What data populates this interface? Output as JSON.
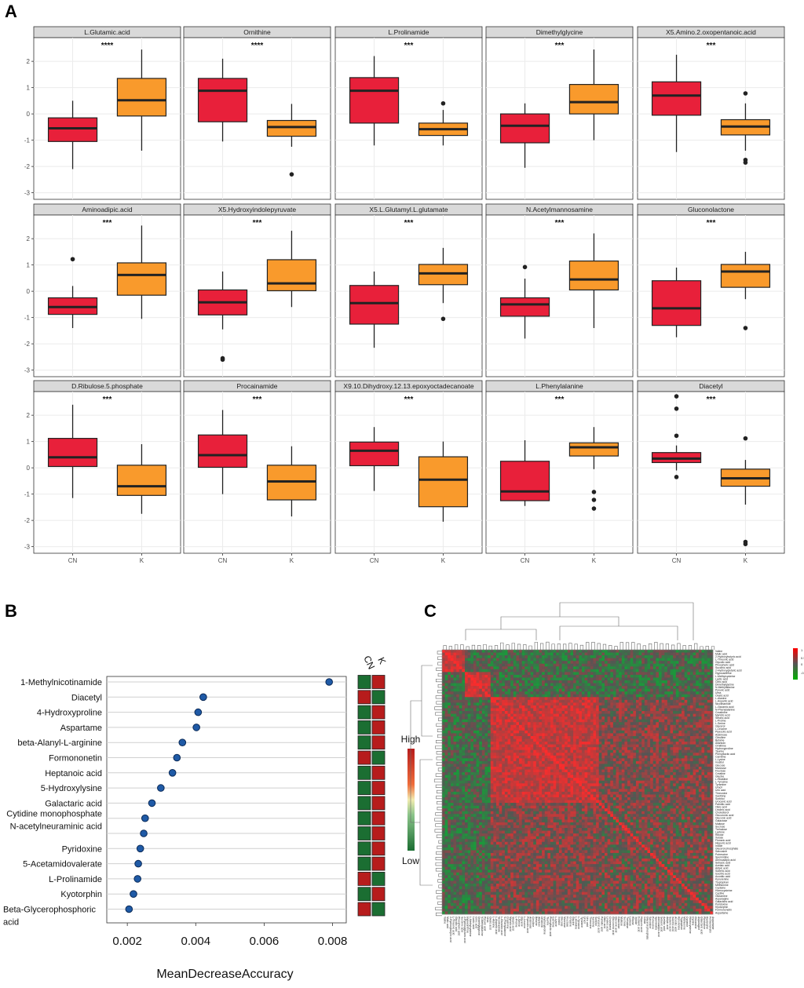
{
  "panels": {
    "a": "A",
    "b": "B",
    "c": "C"
  },
  "colors": {
    "cn_fill": "#e8203a",
    "k_fill": "#f99a2c",
    "strip_bg": "#d9d9d9",
    "grid": "#ebebeb",
    "dot": "#1f5aa6",
    "heat_high": "#ff2b2b",
    "heat_mid": "#555555",
    "heat_low": "#1a9a3a",
    "bar_high": "#b71c1c",
    "bar_low": "#1b6e32"
  },
  "chart_data": [
    {
      "type": "box",
      "panel": "A",
      "categories": [
        "CN",
        "K"
      ],
      "y_ticks": [
        2,
        1,
        0,
        -1,
        -2,
        -3
      ],
      "ylim": [
        -3.25,
        2.9
      ],
      "facets": [
        {
          "name": "L.Glutamic.acid",
          "sig": "****",
          "CN": {
            "q1": -1.05,
            "median": -0.55,
            "q3": -0.15,
            "lower": -2.1,
            "upper": 0.5,
            "outliers": []
          },
          "K": {
            "q1": -0.08,
            "median": 0.52,
            "q3": 1.35,
            "lower": -1.4,
            "upper": 2.45,
            "outliers": []
          }
        },
        {
          "name": "Ornithine",
          "sig": "****",
          "CN": {
            "q1": -0.3,
            "median": 0.88,
            "q3": 1.35,
            "lower": -1.05,
            "upper": 2.1,
            "outliers": []
          },
          "K": {
            "q1": -0.85,
            "median": -0.5,
            "q3": -0.25,
            "lower": -1.25,
            "upper": 0.38,
            "outliers": [
              -2.3
            ]
          }
        },
        {
          "name": "L.Prolinamide",
          "sig": "***",
          "CN": {
            "q1": -0.35,
            "median": 0.88,
            "q3": 1.38,
            "lower": -1.2,
            "upper": 2.2,
            "outliers": []
          },
          "K": {
            "q1": -0.82,
            "median": -0.58,
            "q3": -0.35,
            "lower": -1.2,
            "upper": 0.15,
            "outliers": [
              0.4
            ]
          }
        },
        {
          "name": "Dimethylglycine",
          "sig": "***",
          "CN": {
            "q1": -1.1,
            "median": -0.45,
            "q3": 0.0,
            "lower": -2.05,
            "upper": 0.4,
            "outliers": []
          },
          "K": {
            "q1": 0.0,
            "median": 0.45,
            "q3": 1.12,
            "lower": -1.0,
            "upper": 2.45,
            "outliers": []
          }
        },
        {
          "name": "X5.Amino.2.oxopentanoic.acid",
          "sig": "***",
          "CN": {
            "q1": -0.05,
            "median": 0.7,
            "q3": 1.22,
            "lower": -1.45,
            "upper": 2.25,
            "outliers": []
          },
          "K": {
            "q1": -0.8,
            "median": -0.48,
            "q3": -0.22,
            "lower": -1.4,
            "upper": 0.4,
            "outliers": [
              0.78,
              -1.75,
              -1.85
            ]
          }
        },
        {
          "name": "Aminoadipic.acid",
          "sig": "***",
          "CN": {
            "q1": -0.88,
            "median": -0.6,
            "q3": -0.25,
            "lower": -1.4,
            "upper": 0.2,
            "outliers": [
              1.22
            ]
          },
          "K": {
            "q1": -0.15,
            "median": 0.62,
            "q3": 1.08,
            "lower": -1.05,
            "upper": 2.5,
            "outliers": []
          }
        },
        {
          "name": "X5.Hydroxyindolepyruvate",
          "sig": "***",
          "CN": {
            "q1": -0.9,
            "median": -0.42,
            "q3": 0.05,
            "lower": -1.45,
            "upper": 0.75,
            "outliers": [
              -2.55,
              -2.6
            ]
          },
          "K": {
            "q1": 0.02,
            "median": 0.3,
            "q3": 1.2,
            "lower": -0.6,
            "upper": 2.3,
            "outliers": []
          }
        },
        {
          "name": "X5.L.Glutamyl.L.glutamate",
          "sig": "***",
          "CN": {
            "q1": -1.25,
            "median": -0.45,
            "q3": 0.22,
            "lower": -2.15,
            "upper": 0.75,
            "outliers": []
          },
          "K": {
            "q1": 0.25,
            "median": 0.68,
            "q3": 1.02,
            "lower": -0.45,
            "upper": 1.65,
            "outliers": [
              -1.05
            ]
          }
        },
        {
          "name": "N.Acetylmannosamine",
          "sig": "***",
          "CN": {
            "q1": -0.95,
            "median": -0.5,
            "q3": -0.25,
            "lower": -1.8,
            "upper": 0.48,
            "outliers": [
              0.92
            ]
          },
          "K": {
            "q1": 0.05,
            "median": 0.45,
            "q3": 1.15,
            "lower": -1.4,
            "upper": 2.2,
            "outliers": []
          }
        },
        {
          "name": "Gluconolactone",
          "sig": "***",
          "CN": {
            "q1": -1.3,
            "median": -0.65,
            "q3": 0.4,
            "lower": -1.75,
            "upper": 0.9,
            "outliers": []
          },
          "K": {
            "q1": 0.15,
            "median": 0.75,
            "q3": 1.02,
            "lower": -0.3,
            "upper": 1.5,
            "outliers": [
              -1.4
            ]
          }
        },
        {
          "name": "D.Ribulose.5.phosphate",
          "sig": "***",
          "CN": {
            "q1": 0.05,
            "median": 0.4,
            "q3": 1.12,
            "lower": -1.15,
            "upper": 2.4,
            "outliers": []
          },
          "K": {
            "q1": -1.05,
            "median": -0.7,
            "q3": 0.1,
            "lower": -1.75,
            "upper": 0.9,
            "outliers": []
          }
        },
        {
          "name": "Procainamide",
          "sig": "***",
          "CN": {
            "q1": 0.02,
            "median": 0.48,
            "q3": 1.25,
            "lower": -1.0,
            "upper": 2.2,
            "outliers": []
          },
          "K": {
            "q1": -1.22,
            "median": -0.52,
            "q3": 0.1,
            "lower": -1.85,
            "upper": 0.82,
            "outliers": []
          }
        },
        {
          "name": "X9.10.Dihydroxy.12.13.epoxyoctadecanoate",
          "sig": "***",
          "CN": {
            "q1": 0.08,
            "median": 0.65,
            "q3": 0.98,
            "lower": -0.88,
            "upper": 1.55,
            "outliers": []
          },
          "K": {
            "q1": -1.48,
            "median": -0.45,
            "q3": 0.42,
            "lower": -2.05,
            "upper": 1.0,
            "outliers": []
          }
        },
        {
          "name": "L.Phenylalanine",
          "sig": "***",
          "CN": {
            "q1": -1.25,
            "median": -0.9,
            "q3": 0.25,
            "lower": -1.45,
            "upper": 1.05,
            "outliers": []
          },
          "K": {
            "q1": 0.45,
            "median": 0.78,
            "q3": 0.95,
            "lower": -0.05,
            "upper": 1.55,
            "outliers": [
              -0.92,
              -1.22,
              -1.55
            ]
          }
        },
        {
          "name": "Diacetyl",
          "sig": "***",
          "CN": {
            "q1": 0.2,
            "median": 0.35,
            "q3": 0.58,
            "lower": -0.1,
            "upper": 0.85,
            "outliers": [
              2.72,
              2.25,
              1.22,
              -0.35
            ]
          },
          "K": {
            "q1": -0.7,
            "median": -0.4,
            "q3": -0.05,
            "lower": -1.4,
            "upper": 0.3,
            "outliers": [
              1.12,
              -2.82,
              -2.9
            ]
          }
        }
      ]
    },
    {
      "type": "scatter",
      "panel": "B",
      "xlabel": "MeanDecreaseAccuracy",
      "x_ticks": [
        0.002,
        0.004,
        0.006,
        0.008
      ],
      "xlim": [
        0.0014,
        0.0084
      ],
      "categories": [
        "1-Methylnicotinamide",
        "Diacetyl",
        "4-Hydroxyproline",
        "Aspartame",
        "beta-Alanyl-L-arginine",
        "Formononetin",
        "Heptanoic acid",
        "5-Hydroxylysine",
        "Galactaric acid",
        "Cytidine monophosphate",
        "N-acetylneuraminic acid",
        "Pyridoxine",
        "5-Acetamidovalerate",
        "L-Prolinamide",
        "Kyotorphin",
        "Beta-Glycerophosphoric acid"
      ],
      "label_lines": [
        [
          "1-Methylnicotinamide"
        ],
        [
          "Diacetyl"
        ],
        [
          "4-Hydroxyproline"
        ],
        [
          "Aspartame"
        ],
        [
          "beta-Alanyl-L-arginine"
        ],
        [
          "Formononetin"
        ],
        [
          "Heptanoic acid"
        ],
        [
          "5-Hydroxylysine"
        ],
        [
          "Galactaric acid"
        ],
        [
          "Cytidine monophosphate",
          "N-acetylneuraminic acid"
        ],
        [],
        [
          "Pyridoxine"
        ],
        [
          "5-Acetamidovalerate"
        ],
        [
          "L-Prolinamide"
        ],
        [
          "Kyotorphin"
        ],
        [
          "Beta-Glycerophosphoric",
          "acid"
        ]
      ],
      "values": [
        0.0079,
        0.00422,
        0.00407,
        0.00402,
        0.00361,
        0.00345,
        0.00332,
        0.00298,
        0.00272,
        0.00252,
        0.00248,
        0.00238,
        0.00232,
        0.0023,
        0.00218,
        0.00205
      ],
      "groups": [
        "CN",
        "K"
      ],
      "group_levels": [
        [
          "L",
          "H"
        ],
        [
          "H",
          "L"
        ],
        [
          "L",
          "H"
        ],
        [
          "L",
          "H"
        ],
        [
          "L",
          "H"
        ],
        [
          "H",
          "L"
        ],
        [
          "L",
          "H"
        ],
        [
          "L",
          "H"
        ],
        [
          "L",
          "H"
        ],
        [
          "L",
          "H"
        ],
        [
          "L",
          "H"
        ],
        [
          "L",
          "H"
        ],
        [
          "L",
          "H"
        ],
        [
          "H",
          "L"
        ],
        [
          "L",
          "H"
        ],
        [
          "H",
          "L"
        ]
      ],
      "legend": {
        "high": "High",
        "low": "Low"
      }
    },
    {
      "type": "heatmap",
      "panel": "C",
      "scale": {
        "max_label": "1",
        "mid_upper_label": "0.5",
        "mid_label": "0",
        "mid_lower_label": "-0.5",
        "range": [
          -0.5,
          1
        ]
      },
      "row_labels": [
        "Valine",
        "Malic acid",
        "2-Hydroxybutyric acid",
        "L-Threonic acid",
        "Glycolic acid",
        "Phosphoric acid",
        "Succinic acid",
        "2-Hydroxyglutaric acid",
        "Hypoxanthine",
        "L-Methylcysteine",
        "Lactic acid",
        "Citric acid",
        "Dimethylglycine",
        "N-Methylalanine",
        "Pyruvic acid",
        "Urea",
        "Oxalic acid",
        "L-Alanine",
        "L-Aspartic acid",
        "Nicotinamide",
        "L-Glutamic acid",
        "N-Phenylalanine",
        "Creatinine",
        "Myristic acid",
        "Stearic acid",
        "L-Proline",
        "L-Serine",
        "Glycerol",
        "L-Leucine",
        "Pipecolic acid",
        "Arabinose",
        "Citrulline",
        "Betaine",
        "Allantoin",
        "Ornithine",
        "Hydroxyproline",
        "Taurine",
        "Phenyllactic acid",
        "Carnitine",
        "L-Lysine",
        "Inositol",
        "Glucose",
        "Mannose",
        "Fructose",
        "Creatine",
        "Glycine",
        "L-Histidine",
        "L-Tyrosine",
        "Tyramine",
        "Uracil",
        "Uric acid",
        "Threonine",
        "Xanthine",
        "Sorbitol",
        "Urocanic acid",
        "Palmitic acid",
        "Oleic acid",
        "Linoleic acid",
        "Cholesterol",
        "Glucuronic acid",
        "Gluconic acid",
        "Galactose",
        "Maltose",
        "Sucrose",
        "Trehalose",
        "Lactose",
        "Ribose",
        "Xylose",
        "Fumaric acid",
        "Hippuric acid",
        "Indole",
        "Glycerol phosphate",
        "Sarcosine",
        "Putrescine",
        "Spermidine",
        "Aminoadipic acid",
        "Sebacic acid",
        "Azelaic acid",
        "Adipic acid",
        "Suberic acid",
        "Isocitric acid",
        "Aconitic acid",
        "Kynurenine",
        "Tryptophan",
        "Methionine",
        "Cysteine",
        "Homocysteine",
        "Cystine",
        "Glutamine",
        "Asparagine",
        "Galactaric acid",
        "Pyridoxine",
        "Kyotorphin",
        "Formononetin",
        "Aspartame"
      ],
      "col_labels": [
        "Valine",
        "Malic acid",
        "2-Hydroxybutyric acid",
        "L-Threonic acid",
        "Glycolic acid",
        "Phosphoric acid",
        "Succinic acid",
        "2-Hydroxyglutaric acid",
        "Hypoxanthine",
        "L-Methylcysteine",
        "Lactic acid",
        "Citric acid",
        "Dimethylglycine",
        "N-Methylalanine",
        "Pyruvic acid",
        "Urea",
        "Oxalic acid",
        "L-Alanine",
        "L-Aspartic acid",
        "Nicotinamide",
        "L-Glutamic acid",
        "N-Phenylalanine",
        "Creatinine",
        "Myristic acid",
        "Stearic acid",
        "L-Proline",
        "L-Serine",
        "Glycerol",
        "L-Leucine",
        "Pipecolic acid",
        "Arabinose",
        "Citrulline",
        "Betaine",
        "Allantoin",
        "Ornithine",
        "Hydroxyproline",
        "Taurine",
        "Phenyllactic acid",
        "Carnitine",
        "L-Lysine",
        "Inositol",
        "Glucose",
        "Mannose",
        "Fructose",
        "Creatine",
        "Glycine",
        "L-Histidine",
        "L-Tyrosine",
        "Tyramine",
        "Uracil",
        "Uric acid",
        "Threonine",
        "Xanthine",
        "Sorbitol",
        "Urocanic acid",
        "Palmitic acid",
        "Oleic acid",
        "Linoleic acid",
        "Cholesterol",
        "Glucuronic acid",
        "Gluconic acid",
        "Galactose",
        "Maltose",
        "Sucrose",
        "Trehalose",
        "Lactose",
        "Ribose",
        "Xylose",
        "Fumaric acid",
        "Hippuric acid",
        "Indole",
        "Glycerol phosphate",
        "Sarcosine",
        "Putrescine",
        "Spermidine",
        "Aminoadipic acid",
        "Sebacic acid",
        "Azelaic acid",
        "Adipic acid",
        "Suberic acid",
        "Isocitric acid",
        "Aconitic acid",
        "Kynurenine",
        "Tryptophan",
        "Methionine",
        "Cysteine",
        "Homocysteine",
        "Cystine",
        "Glutamine",
        "Asparagine",
        "Galactaric acid",
        "Pyridoxine",
        "Kyotorphin",
        "Formononetin",
        "Aspartame"
      ]
    }
  ]
}
